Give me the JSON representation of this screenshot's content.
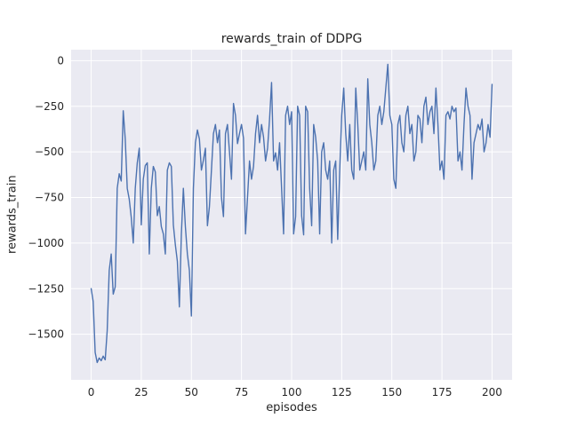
{
  "figure": {
    "background": "#ffffff"
  },
  "chart_data": {
    "type": "line",
    "title": "rewards_train of DDPG",
    "xlabel": "episodes",
    "ylabel": "rewards_train",
    "xlim": [
      -10,
      210
    ],
    "ylim": [
      -1750,
      60
    ],
    "xticks": [
      0,
      25,
      50,
      75,
      100,
      125,
      150,
      175,
      200
    ],
    "yticks": [
      0,
      -250,
      -500,
      -750,
      -1000,
      -1250,
      -1500
    ],
    "grid": true,
    "legend_visible": false,
    "style": {
      "axes_background": "#eaeaf2",
      "grid_color": "#ffffff",
      "line_color": "#4c72b0",
      "line_width": 1.4,
      "text_color": "#262626"
    },
    "series": [
      {
        "name": "rewards_train",
        "x_start": 0,
        "x_step": 1,
        "values": [
          -1250,
          -1320,
          -1600,
          -1655,
          -1630,
          -1645,
          -1620,
          -1640,
          -1480,
          -1150,
          -1060,
          -1280,
          -1240,
          -700,
          -620,
          -660,
          -275,
          -430,
          -700,
          -760,
          -860,
          -1000,
          -700,
          -560,
          -480,
          -900,
          -650,
          -575,
          -560,
          -1060,
          -700,
          -580,
          -610,
          -850,
          -800,
          -910,
          -950,
          -1060,
          -600,
          -560,
          -580,
          -900,
          -1010,
          -1100,
          -1350,
          -950,
          -700,
          -910,
          -1060,
          -1150,
          -1400,
          -700,
          -450,
          -380,
          -430,
          -600,
          -545,
          -480,
          -905,
          -800,
          -600,
          -400,
          -350,
          -450,
          -380,
          -750,
          -855,
          -400,
          -350,
          -500,
          -650,
          -235,
          -300,
          -455,
          -400,
          -350,
          -425,
          -950,
          -750,
          -550,
          -650,
          -580,
          -400,
          -300,
          -450,
          -350,
          -420,
          -550,
          -480,
          -320,
          -120,
          -550,
          -505,
          -600,
          -450,
          -700,
          -950,
          -300,
          -250,
          -350,
          -280,
          -950,
          -855,
          -250,
          -300,
          -850,
          -955,
          -250,
          -280,
          -700,
          -905,
          -350,
          -420,
          -550,
          -950,
          -500,
          -450,
          -600,
          -650,
          -550,
          -1000,
          -600,
          -550,
          -980,
          -600,
          -300,
          -150,
          -400,
          -550,
          -350,
          -600,
          -650,
          -150,
          -350,
          -600,
          -550,
          -500,
          -600,
          -100,
          -350,
          -450,
          -600,
          -550,
          -300,
          -250,
          -350,
          -280,
          -150,
          -20,
          -300,
          -350,
          -650,
          -700,
          -350,
          -300,
          -450,
          -500,
          -300,
          -250,
          -400,
          -350,
          -550,
          -500,
          -300,
          -320,
          -450,
          -250,
          -200,
          -350,
          -280,
          -250,
          -400,
          -150,
          -350,
          -600,
          -550,
          -650,
          -300,
          -280,
          -320,
          -250,
          -280,
          -260,
          -550,
          -500,
          -600,
          -350,
          -150,
          -250,
          -300,
          -650,
          -450,
          -400,
          -350,
          -380,
          -320,
          -500,
          -450,
          -350,
          -420,
          -130
        ]
      }
    ]
  }
}
